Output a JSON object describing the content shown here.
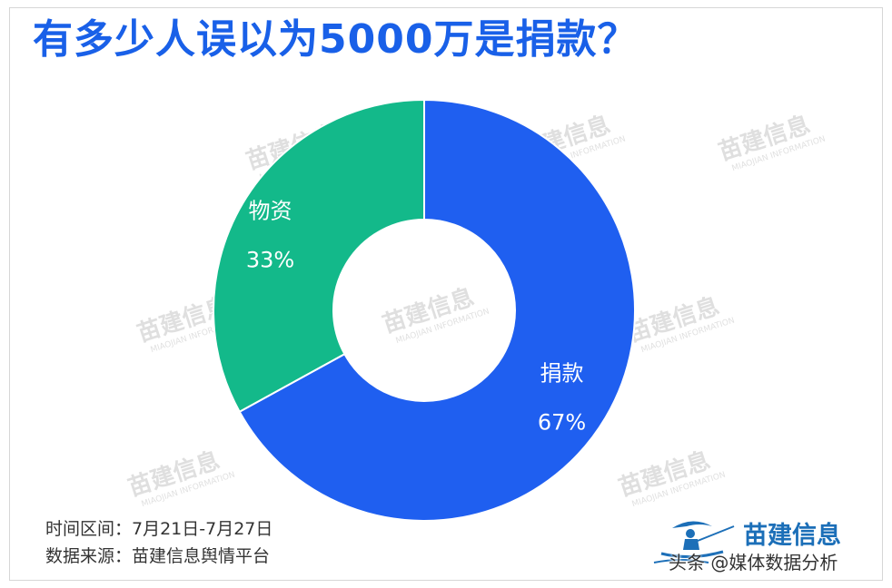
{
  "title": "有多少人误以为5000万是捐款？",
  "watermark": {
    "cn": "苗建信息",
    "en": "MIAOJIAN INFORMATION"
  },
  "chart_data": {
    "type": "pie",
    "variant": "donut",
    "title": "有多少人误以为5000万是捐款？",
    "series": [
      {
        "name": "",
        "labels": [
          "捐款",
          "物资"
        ],
        "values": [
          67,
          33
        ],
        "value_labels": [
          "67%",
          "33%"
        ],
        "colors": [
          "#1f5ff0",
          "#13b98a"
        ]
      }
    ],
    "start_angle": "12 o'clock, clockwise",
    "legend": "none (labels on slices)"
  },
  "footer": {
    "time_range": "时间区间：7月21日-7月27日",
    "data_source": "数据来源：苗建信息舆情平台"
  },
  "logo": {
    "name": "苗建信息",
    "icon": "fisherman-logo-icon"
  },
  "overlay": {
    "source_account": "头条 @媒体数据分析"
  },
  "colors": {
    "title": "#1960e8",
    "background": "#ffffff"
  }
}
